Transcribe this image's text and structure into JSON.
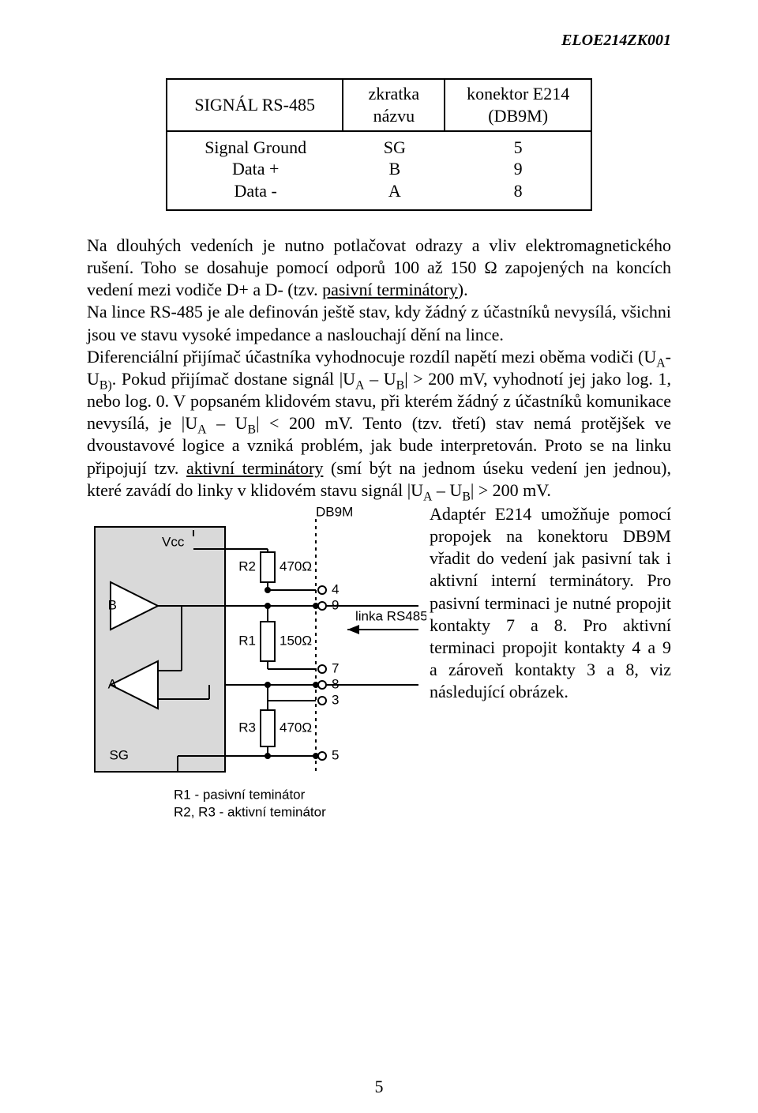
{
  "doc_code": "ELOE214ZK001",
  "table": {
    "headers": {
      "c1": "SIGNÁL RS-485",
      "c2a": "zkratka",
      "c2b": "názvu",
      "c3a": "konektor E214",
      "c3b": "(DB9M)"
    },
    "rows": [
      {
        "c1": "Signal Ground",
        "c2": "SG",
        "c3": "5"
      },
      {
        "c1": "Data +",
        "c2": "B",
        "c3": "9"
      },
      {
        "c1": "Data -",
        "c2": "A",
        "c3": "8"
      }
    ]
  },
  "para1_a": "Na dlouhých vedeních je nutno potlačovat odrazy a vliv elektromagnetického rušení. Toho se dosahuje pomocí odporů 100 až 150 Ω zapojených na koncích vedení mezi vodiče D+ a D- (tzv. ",
  "para1_u": "pasivní terminátory",
  "para1_b": ").",
  "para2": "Na lince RS-485 je ale definován ještě stav, kdy žádný z účastníků nevysílá, všichni jsou ve stavu vysoké impedance a naslouchají dění na lince.",
  "para3_a": "Diferenciální přijímač účastníka vyhodnocuje rozdíl napětí mezi oběma vodiči (U",
  "para3_b": "-U",
  "para3_c": ". Pokud přijímač dostane signál |U",
  "para3_d": " – U",
  "para3_e": "| > 200 mV, vyhodnotí jej jako log. 1, nebo log. 0. V popsaném klidovém stavu, při kterém žádný z účastníků komunikace nevysílá, je |U",
  "para3_f": " – U",
  "para3_g": "| < 200 mV. Tento (tzv. třetí) stav nemá protějšek ve dvoustavové logice a vzniká problém, jak bude interpretován. Proto se na linku připojují tzv. ",
  "para3_u": "aktivní terminátory",
  "para3_h": " (smí být na jednom úseku vedení jen jednou), které zavádí do linky v klidovém stavu signál |U",
  "para3_i": " – U",
  "para3_j": "| > 200 mV.",
  "sub_A": "A",
  "sub_B": "B",
  "sub_Bp": "B)",
  "aside": "Adaptér E214 umožňuje pomocí propojek na konektoru DB9M vřadit do vedení jak pasivní tak i aktivní interní terminátory. Pro pasivní terminaci je nutné propojit kontakty 7 a 8. Pro aktivní terminaci propojit kontakty 4 a 9 a zároveň kontakty 3 a 8, viz následující obrázek.",
  "diagram": {
    "type": "circuit-schematic",
    "chip_fill": "#d9d9d9",
    "stroke": "#000000",
    "bg": "#ffffff",
    "stroke_w": 2,
    "font_size": 17,
    "labels": {
      "Vcc": "Vcc",
      "B": "B",
      "A": "A",
      "SG": "SG",
      "R1": "R1",
      "R2": "R2",
      "R3": "R3",
      "v470a": "470Ω",
      "v150": "150Ω",
      "v470b": "470Ω",
      "DB9M": "DB9M",
      "pin4": "4",
      "pin9": "9",
      "pin7": "7",
      "pin8": "8",
      "pin3": "3",
      "pin5": "5",
      "link": "linka RS485",
      "leg1": "R1 - pasivní teminátor",
      "leg2": "R2, R3 - aktivní teminátor"
    }
  },
  "page_number": "5"
}
